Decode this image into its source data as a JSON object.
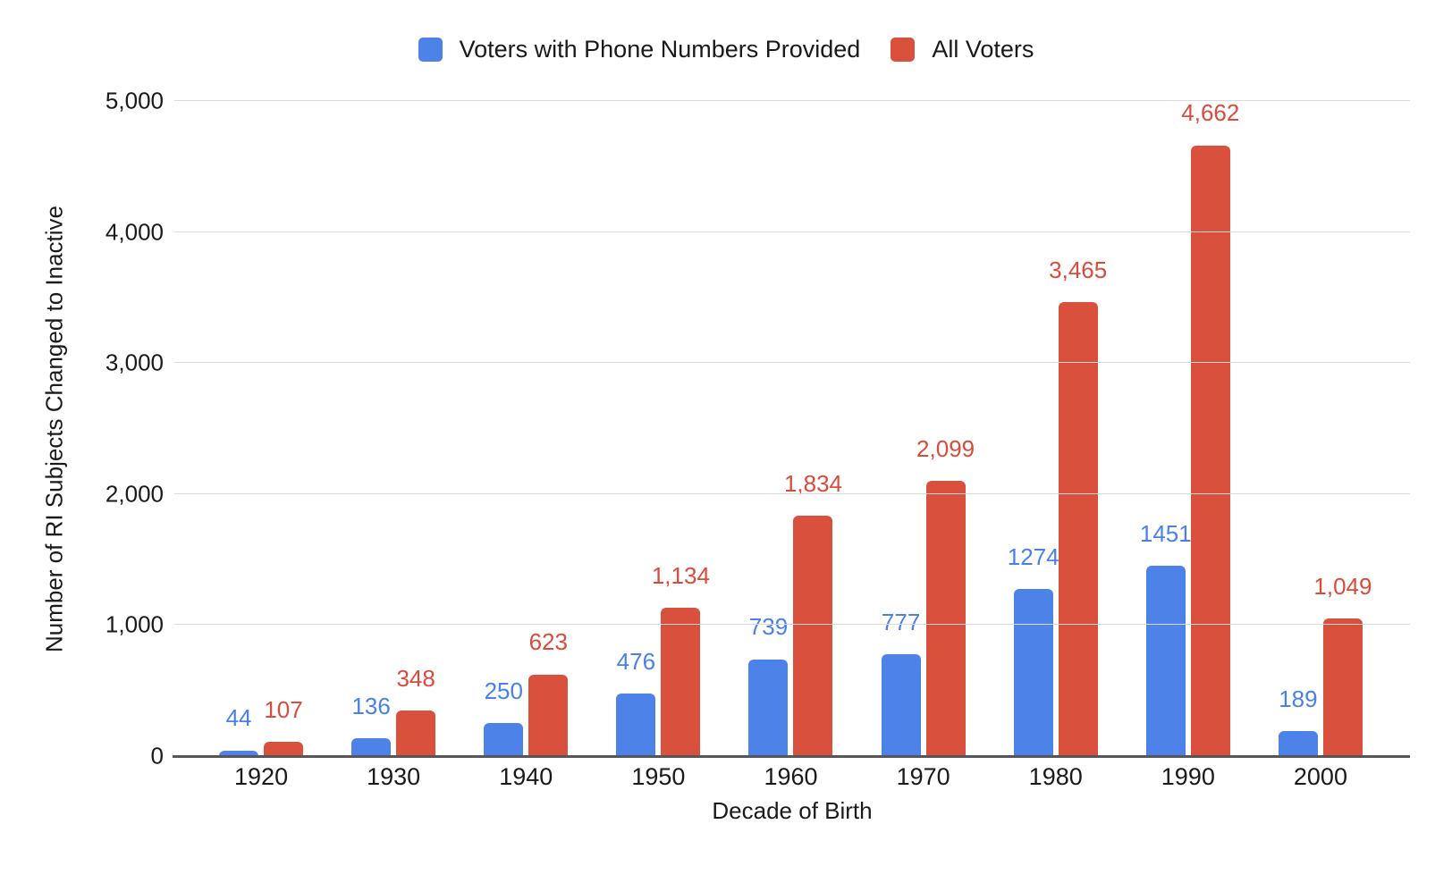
{
  "chart_data": {
    "type": "bar",
    "title": "",
    "xlabel": "Decade of Birth",
    "ylabel": "Number of RI Subjects Changed to Inactive",
    "categories": [
      "1920",
      "1930",
      "1940",
      "1950",
      "1960",
      "1970",
      "1980",
      "1990",
      "2000"
    ],
    "series": [
      {
        "name": "Voters with Phone Numbers Provided",
        "color": "#4d82e8",
        "label_color": "#4a80e8",
        "values": [
          44,
          136,
          250,
          476,
          739,
          777,
          1274,
          1451,
          189
        ],
        "labels": [
          "44",
          "136",
          "250",
          "476",
          "739",
          "777",
          "1274",
          "1451",
          "189"
        ]
      },
      {
        "name": "All Voters",
        "color": "#d9503d",
        "label_color": "#db4b3c",
        "values": [
          107,
          348,
          623,
          1134,
          1834,
          2099,
          3465,
          4662,
          1049
        ],
        "labels": [
          "107",
          "348",
          "623",
          "1,134",
          "1,834",
          "2,099",
          "3,465",
          "4,662",
          "1,049"
        ]
      }
    ],
    "ylim": [
      0,
      5000
    ],
    "ytick_step": 1000,
    "yticks": [
      "0",
      "1,000",
      "2,000",
      "3,000",
      "4,000",
      "5,000"
    ],
    "grid": "horizontal",
    "legend_position": "top"
  },
  "style": {
    "gridline_color": "#dadada",
    "axis_line_color": "#565656",
    "text_color": "#1a1a1a"
  }
}
